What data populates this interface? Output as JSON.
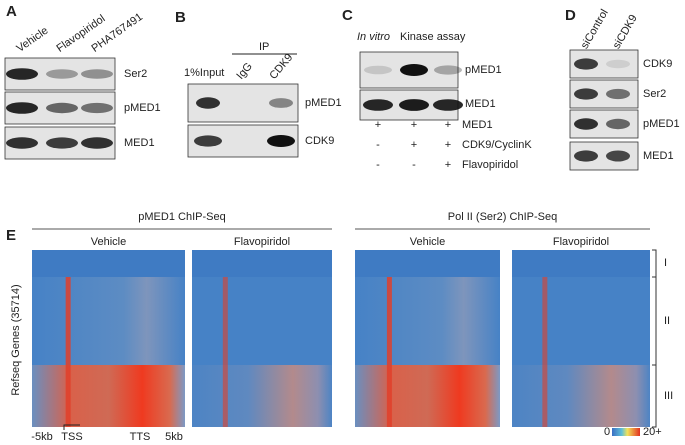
{
  "panel_a": {
    "letter": "A",
    "lanes": [
      "Vehicle",
      "Flavopiridol",
      "PHA767491"
    ],
    "rows": [
      "Ser2",
      "pMED1",
      "MED1"
    ]
  },
  "panel_b": {
    "letter": "B",
    "ip": "IP",
    "lanes": [
      "1%Input",
      "IgG",
      "CDK9"
    ],
    "rows": [
      "pMED1",
      "CDK9"
    ]
  },
  "panel_c": {
    "letter": "C",
    "title_italic": "In vitro",
    "title": "Kinase assay",
    "rows": [
      "pMED1",
      "MED1"
    ],
    "table": [
      {
        "label": "MED1",
        "signs": [
          "+",
          "+",
          "+"
        ]
      },
      {
        "label": "CDK9/CyclinK",
        "signs": [
          "-",
          "+",
          "+"
        ]
      },
      {
        "label": "Flavopiridol",
        "signs": [
          "-",
          "-",
          "+"
        ]
      }
    ]
  },
  "panel_d": {
    "letter": "D",
    "lanes": [
      "siControl",
      "siCDK9"
    ],
    "rows": [
      "CDK9",
      "Ser2",
      "pMED1",
      "MED1"
    ]
  },
  "panel_e": {
    "letter": "E",
    "groups": [
      {
        "title": "pMED1 ChIP-Seq",
        "conditions": [
          "Vehicle",
          "Flavopiridol"
        ]
      },
      {
        "title": "Pol II (Ser2) ChIP-Seq",
        "conditions": [
          "Vehicle",
          "Flavopiridol"
        ]
      }
    ],
    "y_label": "Refseq Genes (35714)",
    "x_labels": [
      "-5kb",
      "TSS",
      "TTS",
      "5kb"
    ],
    "clusters": [
      "I",
      "II",
      "III"
    ],
    "colorbar": [
      "0",
      "20+"
    ]
  }
}
